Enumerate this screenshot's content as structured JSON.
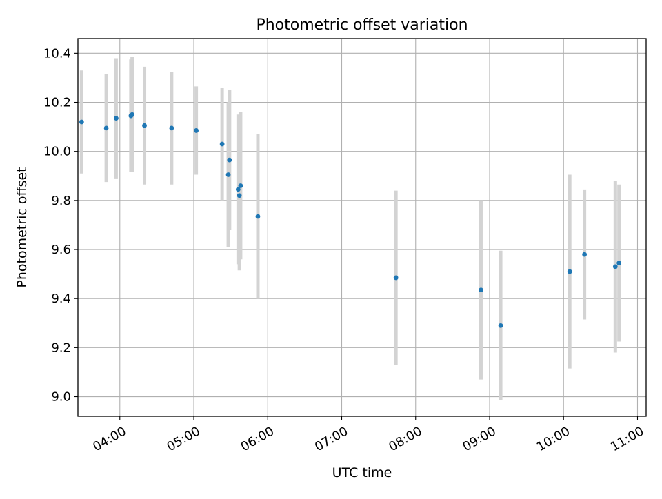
{
  "chart_data": {
    "type": "scatter",
    "title": "Photometric offset variation",
    "xlabel": "UTC time",
    "ylabel": "Photometric offset",
    "x_tick_labels": [
      "04:00",
      "05:00",
      "06:00",
      "07:00",
      "08:00",
      "09:00",
      "10:00",
      "11:00"
    ],
    "y_tick_labels": [
      "9.0",
      "9.2",
      "9.4",
      "9.6",
      "9.8",
      "10.0",
      "10.2",
      "10.4"
    ],
    "x_range": [
      "03:26",
      "11:07"
    ],
    "ylim": [
      8.92,
      10.46
    ],
    "grid": true,
    "legend": "none",
    "colors": {
      "marker": "#1f77b4",
      "errorbar": "#d3d3d3",
      "grid": "#b0b0b0"
    },
    "series": [
      {
        "points": [
          {
            "time": "03:29",
            "y": 10.12,
            "err": 0.21
          },
          {
            "time": "03:49",
            "y": 10.095,
            "err": 0.22
          },
          {
            "time": "03:57",
            "y": 10.135,
            "err": 0.245
          },
          {
            "time": "04:09",
            "y": 10.145,
            "err": 0.23
          },
          {
            "time": "04:10",
            "y": 10.15,
            "err": 0.235
          },
          {
            "time": "04:20",
            "y": 10.105,
            "err": 0.24
          },
          {
            "time": "04:42",
            "y": 10.095,
            "err": 0.23
          },
          {
            "time": "05:02",
            "y": 10.085,
            "err": 0.18
          },
          {
            "time": "05:23",
            "y": 10.03,
            "err": 0.23
          },
          {
            "time": "05:28",
            "y": 9.905,
            "err": 0.295
          },
          {
            "time": "05:29",
            "y": 9.965,
            "err": 0.285
          },
          {
            "time": "05:36",
            "y": 9.845,
            "err": 0.305
          },
          {
            "time": "05:37",
            "y": 9.82,
            "err": 0.305
          },
          {
            "time": "05:38",
            "y": 9.86,
            "err": 0.3
          },
          {
            "time": "05:52",
            "y": 9.735,
            "err": 0.335
          },
          {
            "time": "07:44",
            "y": 9.485,
            "err": 0.355
          },
          {
            "time": "08:53",
            "y": 9.435,
            "err": 0.365
          },
          {
            "time": "09:09",
            "y": 9.29,
            "err": 0.305
          },
          {
            "time": "10:05",
            "y": 9.51,
            "err": 0.395
          },
          {
            "time": "10:17",
            "y": 9.58,
            "err": 0.265
          },
          {
            "time": "10:42",
            "y": 9.53,
            "err": 0.35
          },
          {
            "time": "10:45",
            "y": 9.545,
            "err": 0.32
          }
        ]
      }
    ]
  }
}
